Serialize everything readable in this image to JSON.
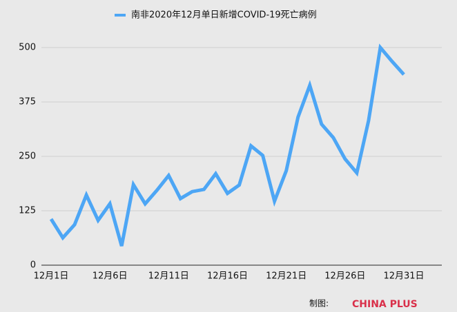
{
  "chart_data": {
    "type": "line",
    "categories": [
      "12月1日",
      null,
      null,
      null,
      null,
      "12月6日",
      null,
      null,
      null,
      null,
      "12月11日",
      null,
      null,
      null,
      null,
      "12月16日",
      null,
      null,
      null,
      null,
      "12月21日",
      null,
      null,
      null,
      null,
      "12月26日",
      null,
      null,
      null,
      null,
      "12月31日"
    ],
    "series": [
      {
        "name": "南非2020年12月单日新增COVID-19死亡病例",
        "color": "#4da6f5",
        "values": [
          106,
          63,
          93,
          161,
          103,
          141,
          44,
          185,
          141,
          172,
          206,
          153,
          169,
          174,
          210,
          165,
          184,
          274,
          252,
          147,
          217,
          340,
          413,
          324,
          293,
          244,
          212,
          332,
          500,
          468,
          438
        ]
      }
    ],
    "ylim": [
      0,
      500
    ],
    "yticks": [
      0,
      125,
      250,
      375,
      500
    ],
    "grid": true
  },
  "footer": {
    "label": "制图:",
    "brand": "CHINA PLUS"
  }
}
